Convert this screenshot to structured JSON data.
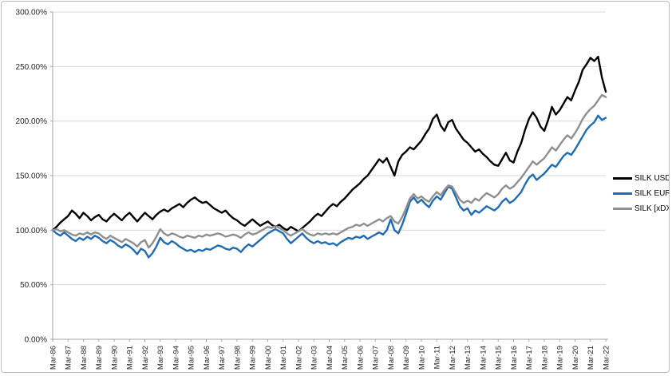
{
  "chart_data": {
    "type": "line",
    "title": "",
    "grid": true,
    "legend_position": "right",
    "y_axis": {
      "min": 0,
      "max": 300,
      "step": 50,
      "labels": [
        "300.00%",
        "250.00%",
        "200.00%",
        "150.00%",
        "100.00%",
        "50.00%",
        "0.00%"
      ]
    },
    "x_axis": {
      "tick_labels": [
        "Mar-86",
        "Mar-87",
        "Mar-88",
        "Mar-89",
        "Mar-90",
        "Mar-91",
        "Mar-92",
        "Mar-93",
        "Mar-94",
        "Mar-95",
        "Mar-96",
        "Mar-97",
        "Mar-98",
        "Mar-99",
        "Mar-00",
        "Mar-01",
        "Mar-02",
        "Mar-03",
        "Mar-04",
        "Mar-05",
        "Mar-06",
        "Mar-07",
        "Mar-08",
        "Mar-09",
        "Mar-10",
        "Mar-11",
        "Mar-12",
        "Mar-13",
        "Mar-14",
        "Mar-15",
        "Mar-16",
        "Mar-17",
        "Mar-18",
        "Mar-19",
        "Mar-20",
        "Mar-21",
        "Mar-22"
      ],
      "span_years": 36,
      "sample_step_years": 0.25
    },
    "series": [
      {
        "name": "SILK USD",
        "color": "#000000",
        "values": [
          100,
          103,
          107,
          110,
          113,
          118,
          115,
          111,
          116,
          113,
          109,
          112,
          114,
          110,
          108,
          112,
          115,
          112,
          109,
          113,
          116,
          112,
          108,
          112,
          116,
          113,
          110,
          114,
          117,
          119,
          117,
          120,
          122,
          124,
          121,
          125,
          128,
          130,
          127,
          125,
          126,
          123,
          120,
          118,
          116,
          118,
          114,
          111,
          109,
          106,
          104,
          107,
          110,
          107,
          104,
          106,
          108,
          105,
          103,
          105,
          102,
          100,
          103,
          101,
          99,
          102,
          105,
          108,
          112,
          115,
          113,
          117,
          121,
          124,
          122,
          126,
          129,
          133,
          137,
          140,
          143,
          147,
          150,
          155,
          160,
          165,
          162,
          166,
          158,
          150,
          163,
          169,
          172,
          176,
          174,
          178,
          182,
          188,
          193,
          202,
          206,
          196,
          191,
          199,
          201,
          193,
          188,
          183,
          180,
          176,
          172,
          174,
          170,
          167,
          163,
          160,
          159,
          165,
          171,
          164,
          162,
          172,
          180,
          192,
          202,
          208,
          203,
          195,
          191,
          201,
          213,
          206,
          210,
          216,
          222,
          219,
          228,
          236,
          247,
          252,
          258,
          255,
          259,
          240,
          227
        ]
      },
      {
        "name": "SILK EURO",
        "color": "#1f6cb5",
        "values": [
          100,
          97,
          95,
          98,
          95,
          92,
          90,
          93,
          91,
          94,
          92,
          95,
          93,
          90,
          88,
          91,
          89,
          86,
          84,
          87,
          85,
          82,
          78,
          83,
          81,
          75,
          79,
          85,
          93,
          89,
          87,
          90,
          88,
          85,
          83,
          81,
          82,
          80,
          82,
          81,
          83,
          82,
          84,
          86,
          85,
          83,
          82,
          84,
          83,
          80,
          84,
          87,
          85,
          88,
          91,
          94,
          97,
          99,
          101,
          99,
          97,
          92,
          88,
          91,
          94,
          97,
          93,
          90,
          88,
          90,
          88,
          89,
          87,
          88,
          86,
          89,
          91,
          93,
          92,
          94,
          93,
          95,
          92,
          94,
          96,
          98,
          96,
          100,
          110,
          100,
          97,
          105,
          115,
          126,
          130,
          125,
          128,
          124,
          121,
          127,
          131,
          128,
          134,
          140,
          138,
          130,
          122,
          118,
          120,
          114,
          118,
          116,
          119,
          122,
          120,
          118,
          121,
          126,
          129,
          125,
          127,
          131,
          135,
          142,
          148,
          151,
          146,
          149,
          152,
          156,
          160,
          158,
          163,
          168,
          171,
          169,
          174,
          180,
          186,
          192,
          196,
          199,
          205,
          201,
          203
        ]
      },
      {
        "name": "SILK [xDXY]",
        "color": "#8f8f8f",
        "values": [
          100,
          101,
          99,
          100,
          98,
          96,
          95,
          97,
          96,
          98,
          96,
          98,
          97,
          94,
          92,
          95,
          93,
          91,
          89,
          92,
          90,
          88,
          85,
          89,
          91,
          84,
          88,
          94,
          101,
          97,
          95,
          97,
          96,
          94,
          93,
          95,
          94,
          93,
          95,
          94,
          96,
          95,
          96,
          97,
          96,
          94,
          95,
          96,
          95,
          93,
          96,
          98,
          96,
          97,
          99,
          101,
          103,
          102,
          104,
          102,
          100,
          97,
          95,
          97,
          99,
          101,
          98,
          96,
          95,
          97,
          96,
          97,
          96,
          97,
          96,
          98,
          100,
          102,
          103,
          105,
          104,
          106,
          104,
          106,
          108,
          110,
          108,
          111,
          113,
          108,
          106,
          112,
          120,
          129,
          133,
          129,
          131,
          128,
          126,
          131,
          135,
          132,
          137,
          141,
          140,
          134,
          128,
          125,
          127,
          125,
          129,
          127,
          131,
          134,
          132,
          130,
          133,
          138,
          141,
          138,
          140,
          144,
          148,
          153,
          158,
          163,
          160,
          163,
          166,
          171,
          176,
          173,
          178,
          183,
          187,
          184,
          189,
          195,
          202,
          207,
          211,
          214,
          219,
          224,
          222
        ]
      }
    ],
    "style": {
      "gridline_color": "#d9d9d9",
      "axis_color": "#a6a6a6",
      "axis_label_color": "#262626",
      "line_width": 2.4
    }
  }
}
